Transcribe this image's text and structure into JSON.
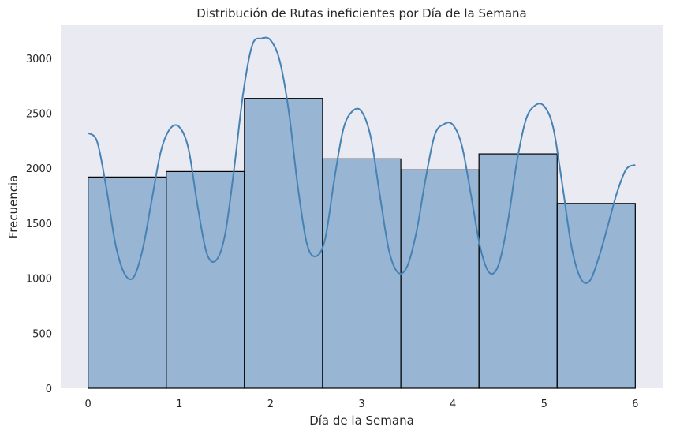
{
  "chart_data": {
    "type": "bar",
    "title": "Distribución de Rutas ineficientes por Día de la Semana",
    "xlabel": "Día de la Semana",
    "ylabel": "Frecuencia",
    "xlim": [
      -0.3,
      6.3
    ],
    "ylim": [
      0,
      3300
    ],
    "x_ticks": [
      0,
      1,
      2,
      3,
      4,
      5,
      6
    ],
    "y_ticks": [
      0,
      500,
      1000,
      1500,
      2000,
      2500,
      3000
    ],
    "bins": [
      {
        "start": 0.0,
        "end": 0.857,
        "value": 1920
      },
      {
        "start": 0.857,
        "end": 1.714,
        "value": 1970
      },
      {
        "start": 1.714,
        "end": 2.571,
        "value": 2635
      },
      {
        "start": 2.571,
        "end": 3.429,
        "value": 2085
      },
      {
        "start": 3.429,
        "end": 4.286,
        "value": 1985
      },
      {
        "start": 4.286,
        "end": 5.143,
        "value": 2130
      },
      {
        "start": 5.143,
        "end": 6.0,
        "value": 1680
      }
    ],
    "kde": {
      "x": [
        0.0,
        0.1,
        0.2,
        0.3,
        0.4,
        0.5,
        0.6,
        0.7,
        0.8,
        0.9,
        1.0,
        1.1,
        1.2,
        1.3,
        1.4,
        1.5,
        1.6,
        1.7,
        1.8,
        1.9,
        2.0,
        2.1,
        2.2,
        2.3,
        2.4,
        2.5,
        2.6,
        2.7,
        2.8,
        2.9,
        3.0,
        3.1,
        3.2,
        3.3,
        3.4,
        3.5,
        3.6,
        3.7,
        3.8,
        3.9,
        4.0,
        4.1,
        4.2,
        4.3,
        4.4,
        4.5,
        4.6,
        4.7,
        4.8,
        4.9,
        5.0,
        5.1,
        5.2,
        5.3,
        5.4,
        5.5,
        5.6,
        5.7,
        5.8,
        5.9,
        6.0
      ],
      "y": [
        2320,
        2240,
        1820,
        1310,
        1040,
        1010,
        1270,
        1720,
        2160,
        2360,
        2375,
        2180,
        1660,
        1230,
        1160,
        1390,
        1990,
        2680,
        3120,
        3180,
        3165,
        2980,
        2520,
        1830,
        1310,
        1200,
        1360,
        1900,
        2360,
        2520,
        2515,
        2280,
        1750,
        1250,
        1050,
        1110,
        1420,
        1900,
        2300,
        2400,
        2395,
        2200,
        1750,
        1280,
        1050,
        1120,
        1500,
        2050,
        2440,
        2570,
        2565,
        2370,
        1850,
        1290,
        1000,
        975,
        1190,
        1480,
        1780,
        1990,
        2030
      ],
      "color": "#4682b4"
    },
    "bar_fill": "#4682b4",
    "bar_alpha": 0.5,
    "bar_edge": "#000000",
    "background": "#eaeaf2",
    "grid": false
  }
}
